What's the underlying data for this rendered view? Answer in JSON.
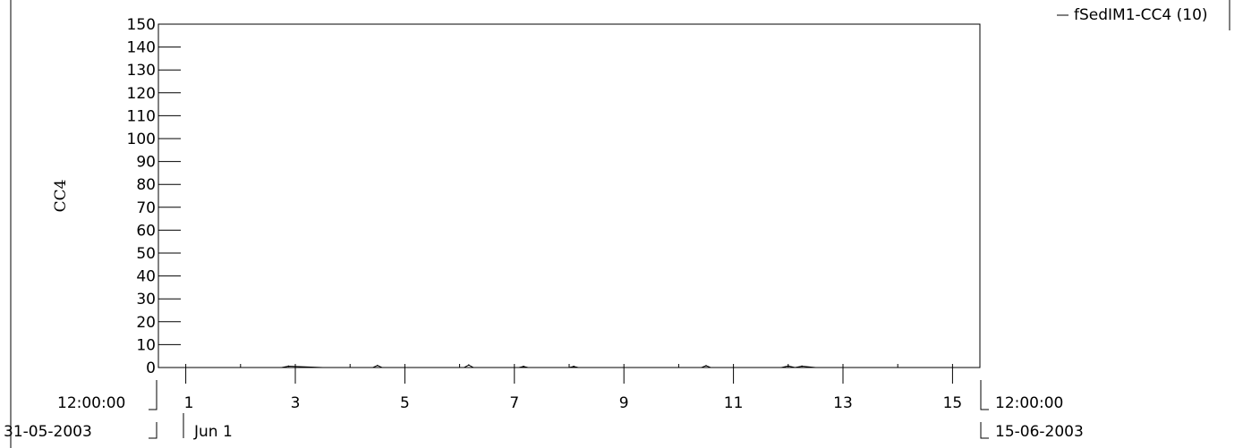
{
  "chart_data": {
    "type": "line",
    "title": "",
    "ylabel": "CC4",
    "xlabel": "",
    "legend": {
      "placement": "top-right",
      "entries": [
        "fSedIM1-CC4 (10)"
      ]
    },
    "grid": false,
    "x_range_start": {
      "time": "12:00:00",
      "date": "31-05-2003"
    },
    "x_range_end": {
      "time": "12:00:00",
      "date": "15-06-2003"
    },
    "month_label": "Jun 1",
    "xlim": [
      "2003-05-31T12:00:00",
      "2003-06-15T12:00:00"
    ],
    "x_ticks": [
      "1",
      "3",
      "5",
      "7",
      "9",
      "11",
      "13",
      "15"
    ],
    "ylim": [
      0,
      150
    ],
    "y_ticks": [
      "0",
      "10",
      "20",
      "30",
      "40",
      "50",
      "60",
      "70",
      "80",
      "90",
      "100",
      "110",
      "120",
      "130",
      "140",
      "150"
    ],
    "series": [
      {
        "name": "fSedIM1-CC4 (10)",
        "x": [
          "2003-06-02T18:00:00",
          "2003-06-02T21:00:00",
          "2003-06-03T12:00:00",
          "2003-06-03T14:00:00",
          "2003-06-04T10:00:00",
          "2003-06-04T12:00:00",
          "2003-06-04T14:00:00",
          "2003-06-06T02:00:00",
          "2003-06-06T04:00:00",
          "2003-06-06T06:00:00",
          "2003-06-07T02:00:00",
          "2003-06-07T04:00:00",
          "2003-06-07T06:00:00",
          "2003-06-08T00:00:00",
          "2003-06-08T02:00:00",
          "2003-06-08T04:00:00",
          "2003-06-09T23:00:00",
          "2003-06-10T10:00:00",
          "2003-06-10T12:00:00",
          "2003-06-10T14:00:00",
          "2003-06-11T21:00:00",
          "2003-06-12T00:00:00",
          "2003-06-12T03:00:00",
          "2003-06-12T06:00:00",
          "2003-06-12T12:00:00"
        ],
        "y": [
          0,
          0.6,
          0,
          0,
          0,
          0.9,
          0,
          0,
          1.1,
          0,
          0,
          0.5,
          0,
          0,
          0.5,
          0,
          0,
          0,
          0.8,
          0,
          0,
          0.7,
          0,
          0.6,
          0
        ]
      }
    ]
  }
}
